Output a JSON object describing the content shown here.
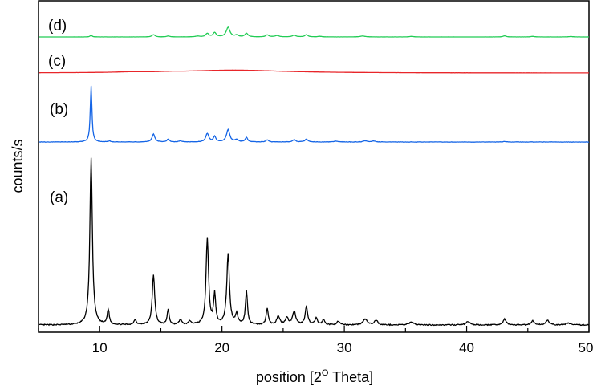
{
  "chart_data": {
    "type": "line",
    "xlabel": "position [2",
    "xlabel_sup": "O",
    "xlabel_tail": " Theta]",
    "ylabel": "counts/s",
    "xlim": [
      5,
      50
    ],
    "xticks": [
      10,
      20,
      30,
      40,
      50
    ],
    "yaxis_tick_labels": false,
    "grid": false,
    "legend": "none",
    "series": [
      {
        "name": "(a)",
        "color": "#000000",
        "baseline": 0,
        "amplitude": 1.0,
        "peaks": [
          [
            9.3,
            1.0,
            0.12
          ],
          [
            10.7,
            0.09,
            0.1
          ],
          [
            12.9,
            0.03,
            0.12
          ],
          [
            14.4,
            0.3,
            0.12
          ],
          [
            15.6,
            0.09,
            0.1
          ],
          [
            16.6,
            0.03,
            0.12
          ],
          [
            17.4,
            0.02,
            0.15
          ],
          [
            18.8,
            0.52,
            0.12
          ],
          [
            19.4,
            0.18,
            0.1
          ],
          [
            20.5,
            0.42,
            0.13
          ],
          [
            21.2,
            0.06,
            0.12
          ],
          [
            22.0,
            0.2,
            0.1
          ],
          [
            23.7,
            0.1,
            0.1
          ],
          [
            24.6,
            0.05,
            0.15
          ],
          [
            25.3,
            0.04,
            0.15
          ],
          [
            25.9,
            0.08,
            0.15
          ],
          [
            26.9,
            0.11,
            0.12
          ],
          [
            27.7,
            0.04,
            0.12
          ],
          [
            28.3,
            0.03,
            0.12
          ],
          [
            29.5,
            0.02,
            0.15
          ],
          [
            31.7,
            0.035,
            0.2
          ],
          [
            32.6,
            0.03,
            0.15
          ],
          [
            35.5,
            0.02,
            0.2
          ],
          [
            40.1,
            0.02,
            0.2
          ],
          [
            43.1,
            0.035,
            0.15
          ],
          [
            45.4,
            0.025,
            0.15
          ],
          [
            46.6,
            0.03,
            0.15
          ],
          [
            48.3,
            0.012,
            0.2
          ]
        ]
      },
      {
        "name": "(b)",
        "color": "#1565e6",
        "baseline": 0,
        "amplitude": 1.0,
        "peaks": [
          [
            9.3,
            1.0,
            0.08
          ],
          [
            10.8,
            0.02,
            0.1
          ],
          [
            14.4,
            0.14,
            0.14
          ],
          [
            15.6,
            0.05,
            0.12
          ],
          [
            16.6,
            0.02,
            0.15
          ],
          [
            18.8,
            0.15,
            0.15
          ],
          [
            19.4,
            0.1,
            0.12
          ],
          [
            20.5,
            0.22,
            0.16
          ],
          [
            21.2,
            0.04,
            0.15
          ],
          [
            22.0,
            0.08,
            0.12
          ],
          [
            23.7,
            0.04,
            0.12
          ],
          [
            25.9,
            0.04,
            0.15
          ],
          [
            26.9,
            0.05,
            0.15
          ],
          [
            29.3,
            0.015,
            0.2
          ],
          [
            31.7,
            0.02,
            0.2
          ],
          [
            32.4,
            0.015,
            0.2
          ],
          [
            43.1,
            0.01,
            0.2
          ]
        ]
      },
      {
        "name": "(c)",
        "color": "#e8262a",
        "baseline": 0,
        "amplitude": 1.0,
        "peaks": [
          [
            21.0,
            0.45,
            5.0
          ],
          [
            12.5,
            0.08,
            1.5
          ],
          [
            15.8,
            0.06,
            1.0
          ]
        ]
      },
      {
        "name": "(d)",
        "color": "#22cc55",
        "baseline": 0,
        "amplitude": 1.0,
        "peaks": [
          [
            9.3,
            0.15,
            0.1
          ],
          [
            14.4,
            0.2,
            0.15
          ],
          [
            15.6,
            0.08,
            0.15
          ],
          [
            18.0,
            0.07,
            0.2
          ],
          [
            18.8,
            0.3,
            0.15
          ],
          [
            19.4,
            0.38,
            0.15
          ],
          [
            20.5,
            0.85,
            0.18
          ],
          [
            21.2,
            0.15,
            0.15
          ],
          [
            22.0,
            0.32,
            0.15
          ],
          [
            23.7,
            0.18,
            0.15
          ],
          [
            24.5,
            0.12,
            0.2
          ],
          [
            25.9,
            0.15,
            0.18
          ],
          [
            26.9,
            0.2,
            0.15
          ],
          [
            28.0,
            0.05,
            0.2
          ],
          [
            31.5,
            0.08,
            0.25
          ],
          [
            35.5,
            0.05,
            0.2
          ],
          [
            43.1,
            0.1,
            0.15
          ],
          [
            45.4,
            0.05,
            0.2
          ],
          [
            48.5,
            0.04,
            0.2
          ]
        ]
      }
    ]
  }
}
